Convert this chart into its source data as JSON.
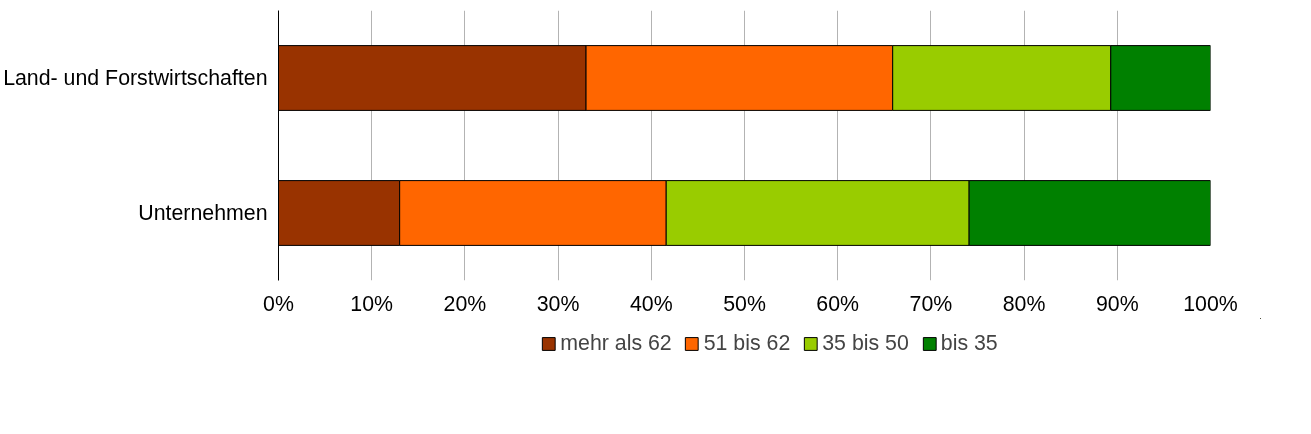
{
  "chart_data": {
    "type": "bar",
    "orientation": "horizontal",
    "stacked": true,
    "categories": [
      "Land- und Forstwirtschaften",
      "Unternehmen"
    ],
    "series": [
      {
        "name": "mehr als 62",
        "color": "#993300",
        "values": [
          33,
          13
        ]
      },
      {
        "name": "51 bis 62",
        "color": "#ff6600",
        "values": [
          32.9,
          28.6
        ]
      },
      {
        "name": "35 bis 50",
        "color": "#99cc00",
        "values": [
          23.4,
          32.5
        ]
      },
      {
        "name": "bis 35",
        "color": "#008000",
        "values": [
          10.7,
          25.9
        ]
      }
    ],
    "xlim": [
      0,
      100
    ],
    "xticks": [
      {
        "value": 0,
        "label": "0%"
      },
      {
        "value": 10,
        "label": "10%"
      },
      {
        "value": 20,
        "label": "20%"
      },
      {
        "value": 30,
        "label": "30%"
      },
      {
        "value": 40,
        "label": "40%"
      },
      {
        "value": 50,
        "label": "50%"
      },
      {
        "value": 60,
        "label": "60%"
      },
      {
        "value": 70,
        "label": "70%"
      },
      {
        "value": 80,
        "label": "80%"
      },
      {
        "value": 90,
        "label": "90%"
      },
      {
        "value": 100,
        "label": "100%"
      }
    ],
    "grid": "x",
    "legend": "bottom"
  }
}
